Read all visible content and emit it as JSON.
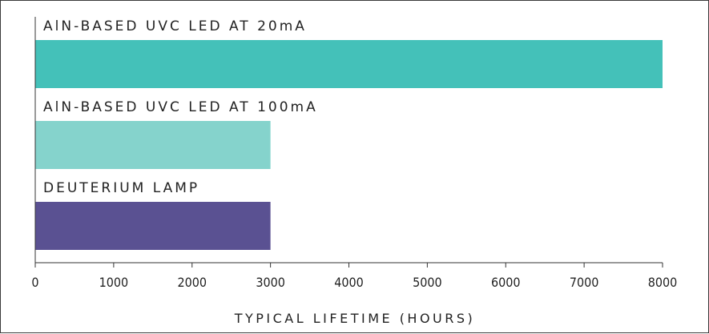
{
  "chart_data": {
    "type": "bar",
    "orientation": "horizontal",
    "categories": [
      "AlN-BASED UVC LED AT 20mA",
      "AlN-BASED UVC LED AT 100mA",
      "DEUTERIUM LAMP"
    ],
    "values": [
      8000,
      3000,
      3000
    ],
    "colors": [
      "#44c1b9",
      "#85d3cc",
      "#5a5192"
    ],
    "xlabel": "TYPICAL LIFETIME (HOURS)",
    "ylabel": "",
    "xlim": [
      0,
      8000
    ],
    "xticks": [
      0,
      1000,
      2000,
      3000,
      4000,
      5000,
      6000,
      7000,
      8000
    ],
    "grid": false,
    "legend": "none"
  }
}
